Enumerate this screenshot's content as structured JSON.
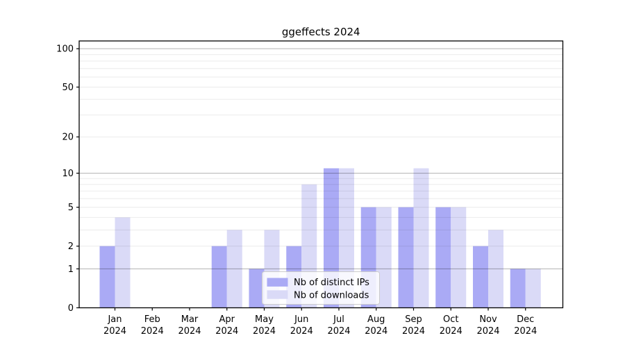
{
  "figure": {
    "title": "ggeffects 2024"
  },
  "chart_data": {
    "type": "bar",
    "title": "ggeffects 2024",
    "categories": [
      "Jan 2024",
      "Feb 2024",
      "Mar 2024",
      "Apr 2024",
      "May 2024",
      "Jun 2024",
      "Jul 2024",
      "Aug 2024",
      "Sep 2024",
      "Oct 2024",
      "Nov 2024",
      "Dec 2024"
    ],
    "x_tick_labels": [
      {
        "month": "Jan",
        "year": "2024"
      },
      {
        "month": "Feb",
        "year": "2024"
      },
      {
        "month": "Mar",
        "year": "2024"
      },
      {
        "month": "Apr",
        "year": "2024"
      },
      {
        "month": "May",
        "year": "2024"
      },
      {
        "month": "Jun",
        "year": "2024"
      },
      {
        "month": "Jul",
        "year": "2024"
      },
      {
        "month": "Aug",
        "year": "2024"
      },
      {
        "month": "Sep",
        "year": "2024"
      },
      {
        "month": "Oct",
        "year": "2024"
      },
      {
        "month": "Nov",
        "year": "2024"
      },
      {
        "month": "Dec",
        "year": "2024"
      }
    ],
    "series": [
      {
        "name": "Nb of distinct IPs",
        "color": "#aaaaf5",
        "values": [
          2,
          0,
          0,
          2,
          1,
          2,
          11,
          5,
          5,
          5,
          2,
          1
        ]
      },
      {
        "name": "Nb of downloads",
        "color": "#dadaf7",
        "values": [
          4,
          0,
          0,
          3,
          3,
          8,
          11,
          5,
          11,
          5,
          3,
          1
        ]
      }
    ],
    "y_scale": "log1p",
    "ylim": [
      0,
      115
    ],
    "y_ticks": [
      0,
      1,
      2,
      5,
      10,
      20,
      50,
      100
    ],
    "y_tick_labels": [
      "0",
      "1",
      "2",
      "5",
      "10",
      "20",
      "50",
      "100"
    ],
    "y_minor_grid": [
      2,
      3,
      4,
      5,
      6,
      7,
      8,
      9,
      20,
      30,
      40,
      50,
      60,
      70,
      80,
      90
    ],
    "y_major_grid": [
      1,
      10,
      100
    ],
    "grid": true,
    "legend_position": "lower center",
    "style": {
      "axis_color": "#000000",
      "minor_grid_color": "rgba(0,0,0,0.08)",
      "major_grid_color": "rgba(0,0,0,0.27)",
      "legend_border_color": "#cccccc",
      "legend_background": "rgba(255,255,255,0.8)",
      "background": "#ffffff"
    }
  }
}
